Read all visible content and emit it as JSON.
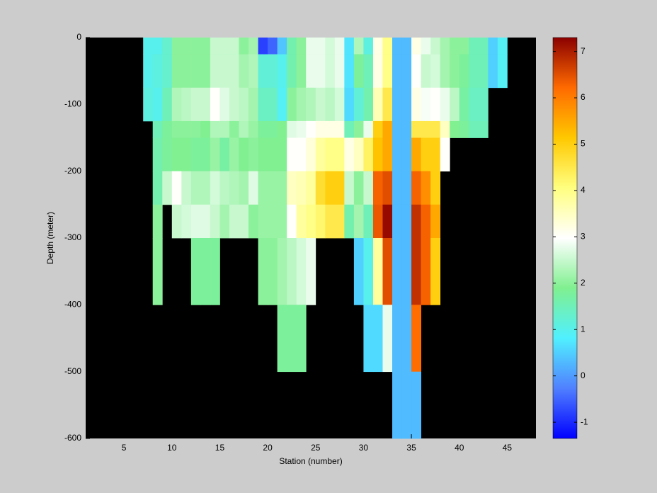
{
  "chart_data": {
    "type": "heatmap",
    "xlabel": "Station (number)",
    "ylabel": "Depth (meter)",
    "xlim": [
      1,
      48
    ],
    "ylim": [
      -600,
      0
    ],
    "xticks": [
      5,
      10,
      15,
      20,
      25,
      30,
      35,
      40,
      45
    ],
    "yticks": [
      0,
      -100,
      -200,
      -300,
      -400,
      -500,
      -600
    ],
    "x_edges": [
      7,
      8,
      9,
      10,
      11,
      12,
      13,
      14,
      15,
      16,
      17,
      18,
      19,
      20,
      21,
      22,
      23,
      24,
      25,
      26,
      27,
      28,
      29,
      30,
      31,
      32,
      33,
      34,
      35,
      36,
      37,
      38,
      39,
      40,
      41,
      42,
      43,
      44,
      45
    ],
    "y_edges": [
      0,
      -25,
      -75,
      -125,
      -150,
      -200,
      -250,
      -300,
      -400,
      -500,
      -600
    ],
    "values": [
      [
        1.0,
        1.0,
        1.1,
        null,
        null,
        null,
        null,
        null,
        null,
        null
      ],
      [
        1.0,
        1.1,
        1.0,
        1.5,
        1.6,
        1.6,
        2.0,
        2.0,
        null,
        null
      ],
      [
        1.3,
        1.3,
        1.5,
        1.8,
        1.8,
        2.5,
        null,
        null,
        null,
        null
      ],
      [
        2.0,
        2.0,
        2.3,
        2.0,
        1.9,
        3.0,
        2.5,
        null,
        null,
        null
      ],
      [
        2.0,
        2.0,
        2.4,
        2.0,
        1.9,
        2.5,
        2.6,
        null,
        null,
        null
      ],
      [
        2.0,
        2.0,
        2.5,
        2.0,
        1.8,
        2.3,
        2.7,
        1.8,
        null,
        null
      ],
      [
        2.0,
        2.0,
        2.5,
        1.9,
        1.8,
        2.3,
        2.7,
        1.8,
        null,
        null
      ],
      [
        2.5,
        2.5,
        3.0,
        2.3,
        2.1,
        2.6,
        2.5,
        1.8,
        null,
        null
      ],
      [
        2.5,
        2.5,
        2.7,
        2.3,
        1.7,
        2.4,
        2.2,
        null,
        null,
        null
      ],
      [
        2.5,
        2.5,
        2.5,
        2.0,
        2.1,
        2.3,
        2.5,
        null,
        null,
        null
      ],
      [
        2.0,
        2.2,
        2.4,
        2.3,
        1.9,
        2.2,
        2.5,
        null,
        null,
        null
      ],
      [
        2.2,
        2.3,
        2.2,
        2.1,
        2.0,
        2.7,
        2.0,
        null,
        null,
        null
      ],
      [
        -0.8,
        1.2,
        1.4,
        1.8,
        1.9,
        2.1,
        2.1,
        2.0,
        null,
        null
      ],
      [
        -0.5,
        1.2,
        1.4,
        1.8,
        1.9,
        2.1,
        2.1,
        2.0,
        null,
        null
      ],
      [
        0.4,
        1.0,
        0.9,
        1.9,
        1.9,
        2.1,
        2.1,
        2.2,
        1.8,
        null
      ],
      [
        1.6,
        1.6,
        2.0,
        2.7,
        3.0,
        3.5,
        3.0,
        2.4,
        1.8,
        null
      ],
      [
        2.0,
        2.0,
        2.2,
        2.8,
        3.0,
        3.6,
        3.8,
        2.6,
        1.8,
        null
      ],
      [
        2.8,
        2.8,
        2.3,
        3.0,
        3.3,
        3.8,
        4.0,
        2.8,
        null,
        null
      ],
      [
        2.8,
        2.8,
        2.5,
        3.2,
        3.8,
        4.7,
        4.2,
        null,
        null,
        null
      ],
      [
        2.6,
        2.6,
        2.4,
        3.2,
        4.0,
        5.0,
        4.5,
        null,
        null,
        null
      ],
      [
        2.8,
        2.8,
        2.6,
        3.2,
        4.0,
        5.0,
        4.5,
        null,
        null,
        null
      ],
      [
        0.7,
        0.7,
        0.6,
        1.5,
        3.2,
        2.5,
        1.6,
        null,
        null,
        null
      ],
      [
        2.3,
        1.8,
        1.2,
        2.0,
        3.5,
        2.0,
        2.2,
        0.5,
        null,
        null
      ],
      [
        1.1,
        1.5,
        1.6,
        2.8,
        4.3,
        2.5,
        1.5,
        1.0,
        0.6,
        null
      ],
      [
        3.2,
        3.2,
        3.6,
        5.0,
        5.2,
        6.3,
        6.4,
        3.8,
        0.6,
        null
      ],
      [
        4.0,
        4.0,
        4.5,
        5.5,
        5.5,
        6.5,
        7.2,
        6.5,
        2.8,
        null
      ],
      [
        0.3,
        0.3,
        0.3,
        0.3,
        0.3,
        0.3,
        0.3,
        0.3,
        0.3,
        0.3
      ],
      [
        0.3,
        0.3,
        0.3,
        0.3,
        0.3,
        0.3,
        0.3,
        0.3,
        0.3,
        0.3
      ],
      [
        3.2,
        3.0,
        3.2,
        4.5,
        5.5,
        6.3,
        6.8,
        6.8,
        6.2,
        0.3
      ],
      [
        2.8,
        2.5,
        2.9,
        4.5,
        5.0,
        5.8,
        6.3,
        6.3,
        null,
        null
      ],
      [
        2.5,
        2.6,
        3.0,
        4.5,
        5.0,
        5.0,
        5.5,
        5.0,
        null,
        null
      ],
      [
        2.2,
        2.2,
        2.8,
        3.5,
        3.0,
        null,
        null,
        null,
        null,
        null
      ],
      [
        2.0,
        2.0,
        2.4,
        1.9,
        null,
        null,
        null,
        null,
        null,
        null
      ],
      [
        2.0,
        1.8,
        1.7,
        1.8,
        null,
        null,
        null,
        null,
        null,
        null
      ],
      [
        1.5,
        1.5,
        1.4,
        1.5,
        null,
        null,
        null,
        null,
        null,
        null
      ],
      [
        1.5,
        1.5,
        1.4,
        1.5,
        null,
        null,
        null,
        null,
        null,
        null
      ],
      [
        0.5,
        0.5,
        null,
        null,
        null,
        null,
        null,
        null,
        null,
        null
      ],
      [
        0.9,
        0.9,
        null,
        null,
        null,
        null,
        null,
        null,
        null,
        null
      ]
    ],
    "background": "#000000",
    "colormap": [
      "#0000ff",
      "#5080ff",
      "#50f0ff",
      "#80f090",
      "#ffffff",
      "#ffff80",
      "#ffc800",
      "#ff6a00",
      "#8b0000"
    ],
    "clim": [
      -1.35,
      7.3
    ],
    "cticks": [
      -1,
      0,
      1,
      2,
      3,
      4,
      5,
      6,
      7
    ]
  }
}
